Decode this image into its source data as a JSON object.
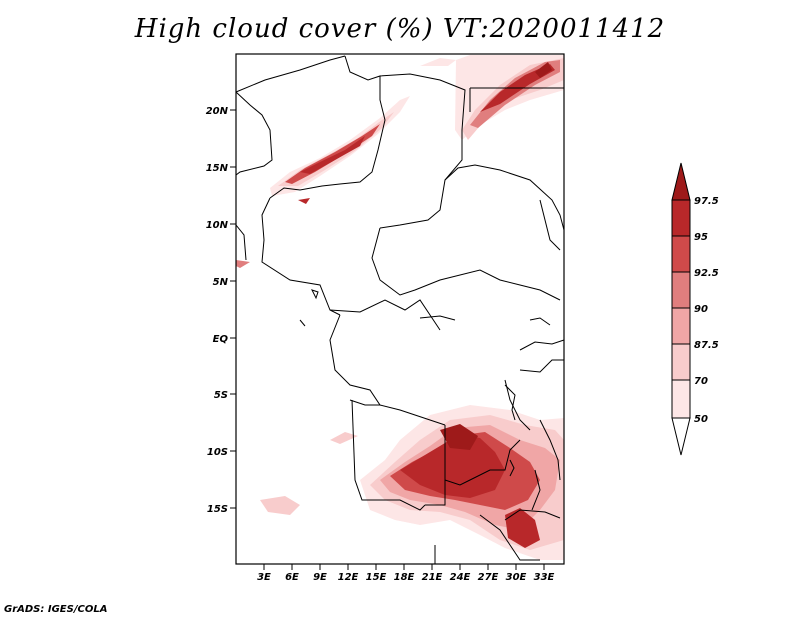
{
  "title": "High cloud cover (%) VT:2020011412",
  "credit": "GrADS: IGES/COLA",
  "map": {
    "lon_range": [
      0,
      35
    ],
    "lat_range": [
      -20,
      25
    ],
    "lon_ticks": [
      "3E",
      "6E",
      "9E",
      "12E",
      "15E",
      "18E",
      "21E",
      "24E",
      "27E",
      "30E",
      "33E"
    ],
    "lat_ticks": [
      "20N",
      "15N",
      "10N",
      "5N",
      "EQ",
      "5S",
      "10S",
      "15S"
    ]
  },
  "legend": {
    "levels": [
      "97.5",
      "95",
      "92.5",
      "90",
      "87.5",
      "70",
      "50"
    ],
    "colors": {
      "above_97_5": "#9e1a1a",
      "95_97_5": "#b8282a",
      "92_5_95": "#cf4a4a",
      "90_92_5": "#e07e7e",
      "87_5_90": "#f0a6a6",
      "70_87_5": "#f8cccc",
      "50_70": "#fde6e6",
      "below_50": "#ffffff"
    }
  }
}
